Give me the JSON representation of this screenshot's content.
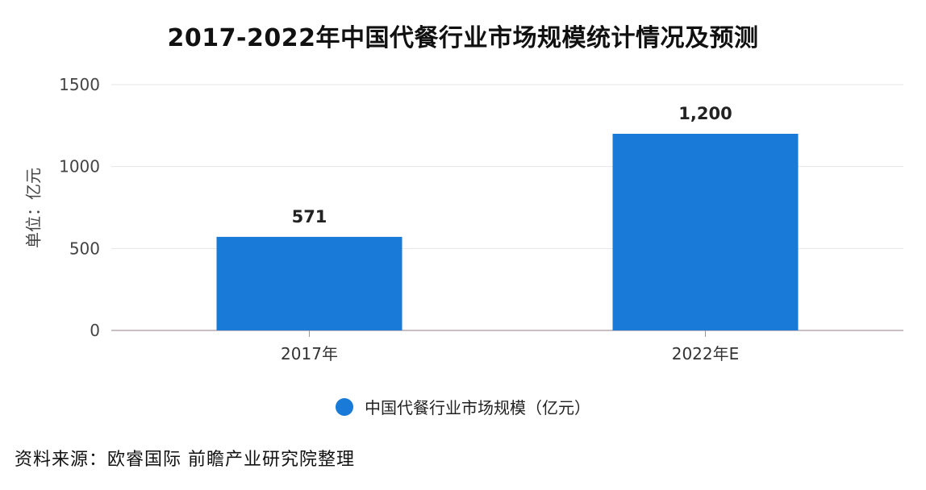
{
  "chart_data": {
    "type": "bar",
    "title": "2017-2022年中国代餐行业市场规模统计情况及预测",
    "ylabel": "单位：亿元",
    "xlabel": "",
    "categories": [
      "2017年",
      "2022年E"
    ],
    "series": [
      {
        "name": "中国代餐行业市场规模（亿元）",
        "values": [
          571,
          1200
        ],
        "data_labels": [
          "571",
          "1,200"
        ],
        "color": "#1a7ad7"
      }
    ],
    "ylim": [
      0,
      1500
    ],
    "yticks": [
      "0",
      "500",
      "1000",
      "1500"
    ],
    "grid": true,
    "legend_position": "bottom"
  },
  "source": "资料来源：欧睿国际 前瞻产业研究院整理"
}
